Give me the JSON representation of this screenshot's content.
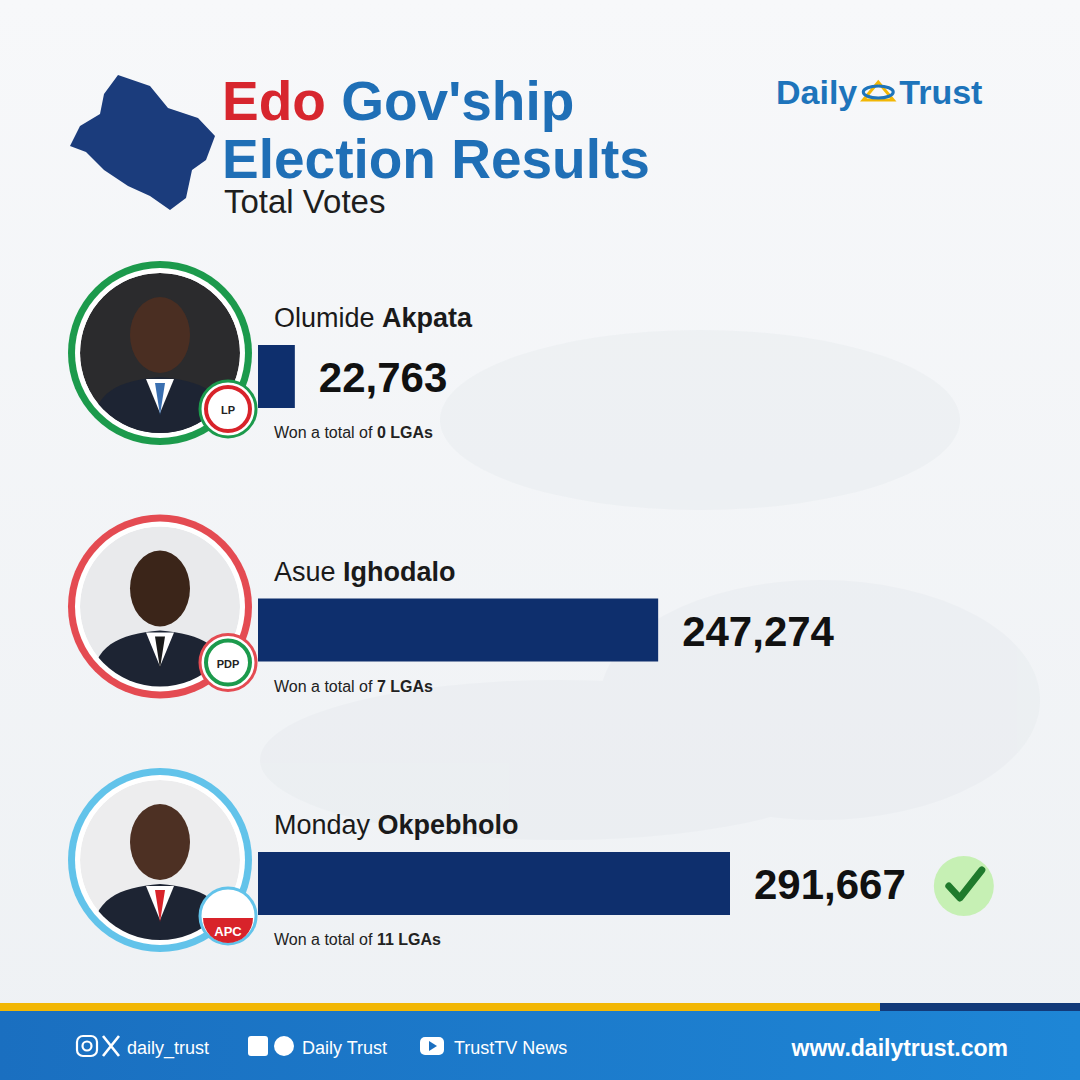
{
  "chart_data": {
    "type": "bar",
    "orientation": "horizontal",
    "title": "Edo Gov'ship Election Results",
    "subtitle": "Total Votes",
    "categories": [
      "Olumide Akpata",
      "Asue Ighodalo",
      "Monday Okpebholo"
    ],
    "values": [
      22763,
      247274,
      291667
    ],
    "value_labels": [
      "22,763",
      "247,274",
      "291,667"
    ],
    "annotations": [
      "Won a total of 0 LGAs",
      "Won a total of 7 LGAs",
      "Won a total of 11 LGAs"
    ],
    "color": "#0e2f6d",
    "data_labels": true,
    "tick_labels": false
  },
  "parties": [
    "LP",
    "PDP",
    "APC"
  ],
  "logo": "Daily Trust",
  "footer": {
    "social": "daily_trust",
    "pages": "Daily Trust",
    "video": "TrustTV News",
    "website": "www.dailytrust.com"
  }
}
